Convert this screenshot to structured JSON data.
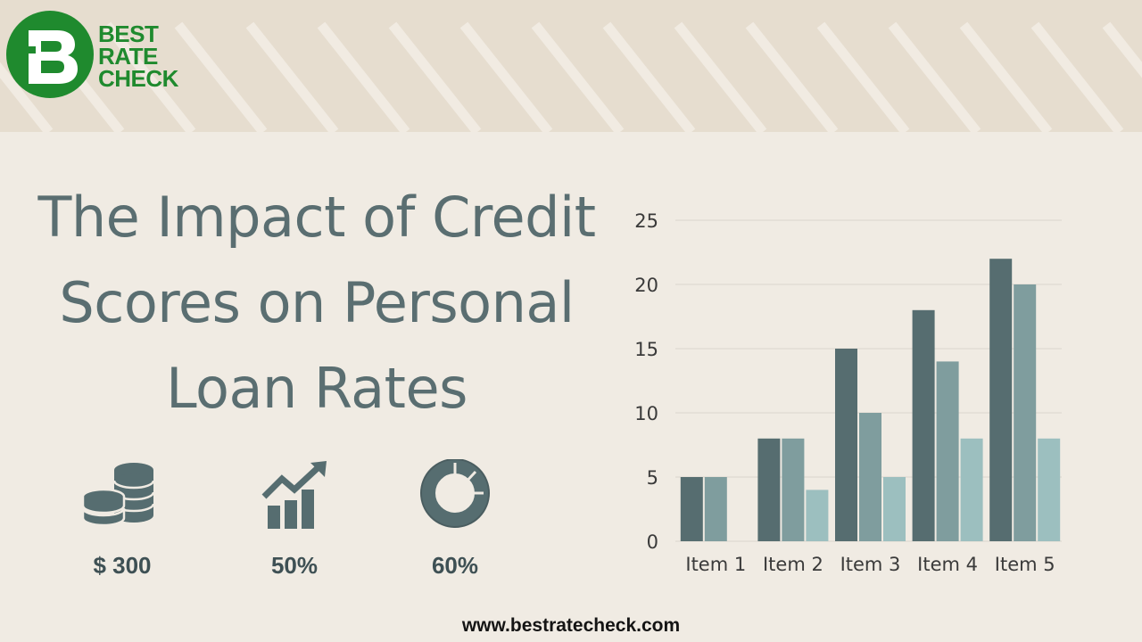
{
  "brand": {
    "logo_letter": "B",
    "name_lines": [
      "BEST",
      "RATE",
      "CHECK"
    ],
    "accent_color": "#1f8a2e"
  },
  "headline": {
    "lines": [
      "The Impact of Credit",
      "Scores on Personal",
      "Loan Rates"
    ]
  },
  "stats": [
    {
      "icon": "coin-stack-icon",
      "value": "$ 300"
    },
    {
      "icon": "growth-bar-chart-icon",
      "value": "50%"
    },
    {
      "icon": "donut-chart-icon",
      "value": "60%"
    }
  ],
  "chart_data": {
    "type": "bar",
    "categories": [
      "Item 1",
      "Item 2",
      "Item 3",
      "Item 4",
      "Item 5"
    ],
    "series": [
      {
        "values": [
          5,
          8,
          15,
          18,
          22
        ],
        "color": "#566d70"
      },
      {
        "values": [
          5,
          8,
          10,
          14,
          20
        ],
        "color": "#7f9d9e"
      },
      {
        "values": [
          0,
          4,
          5,
          8,
          8
        ],
        "color": "#9cbfbf"
      }
    ],
    "ylim": [
      0,
      25
    ],
    "yticks": [
      0,
      5,
      10,
      15,
      20,
      25
    ],
    "grid": true,
    "legend": "none",
    "title": "",
    "xlabel": "",
    "ylabel": ""
  },
  "footer": {
    "url": "www.bestratecheck.com"
  }
}
